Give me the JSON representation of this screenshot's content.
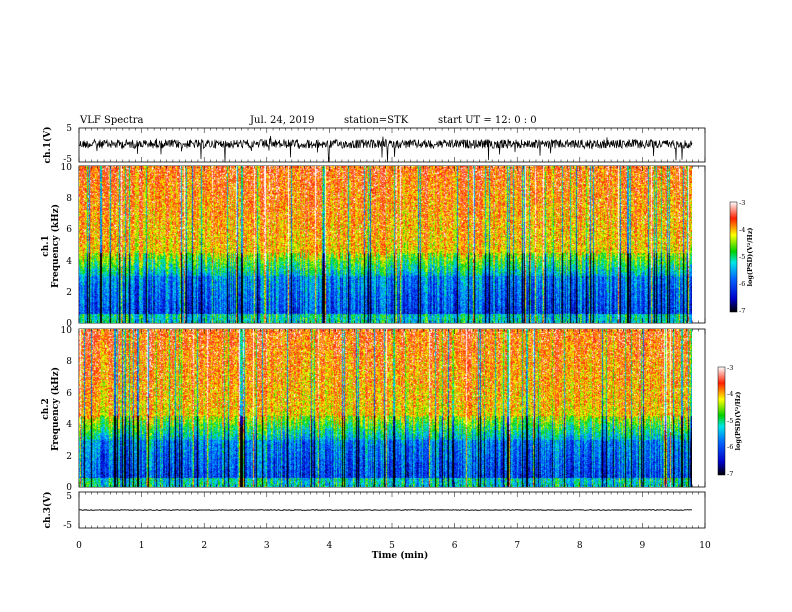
{
  "header": {
    "title": "VLF Spectra",
    "date": "Jul. 24, 2019",
    "station": "station=STK",
    "start": "start UT =  12: 0 : 0"
  },
  "chart_data": [
    {
      "type": "line",
      "panel": "ch1-waveform",
      "ylabel": "ch.1(V)",
      "ylim": [
        -5,
        5
      ],
      "y_ticks": [
        "5",
        "-5"
      ],
      "xlim": [
        0,
        10
      ],
      "description_of_signal": "noisy waveform around +0.5 V with spikes to about ±5 V"
    },
    {
      "type": "heatmap",
      "panel": "ch1-spectrogram",
      "ylabel": [
        "ch.1",
        "Frequency (kHz)"
      ],
      "ylim": [
        0,
        10
      ],
      "y_ticks": [
        "0",
        "2",
        "4",
        "6",
        "8",
        "10"
      ],
      "xlim": [
        0,
        10
      ],
      "data_end_min": 9.8,
      "colorbar": {
        "label": "log(PSD)(V²/Hz)",
        "range": [
          -7,
          -3
        ],
        "ticks": [
          "-3",
          "-4",
          "-5",
          "-6",
          "-7"
        ]
      }
    },
    {
      "type": "heatmap",
      "panel": "ch2-spectrogram",
      "ylabel": [
        "ch.2",
        "Frequency (kHz)"
      ],
      "ylim": [
        0,
        10
      ],
      "y_ticks": [
        "0",
        "2",
        "4",
        "6",
        "8",
        "10"
      ],
      "xlim": [
        0,
        10
      ],
      "data_end_min": 9.8,
      "colorbar": {
        "label": "log(PSD)(V²/Hz)",
        "range": [
          -7,
          -3
        ],
        "ticks": [
          "-3",
          "-4",
          "-5",
          "-6",
          "-7"
        ]
      }
    },
    {
      "type": "line",
      "panel": "ch3-waveform",
      "ylabel": "ch.3(V)",
      "ylim": [
        -5,
        5
      ],
      "y_ticks": [
        "5",
        "-5"
      ],
      "xlim": [
        0,
        10
      ],
      "x": [
        0,
        9.8
      ],
      "y": [
        0,
        0
      ],
      "xlabel": "Time (min)",
      "x_ticks": [
        "0",
        "1",
        "2",
        "3",
        "4",
        "5",
        "6",
        "7",
        "8",
        "9",
        "10"
      ]
    }
  ]
}
